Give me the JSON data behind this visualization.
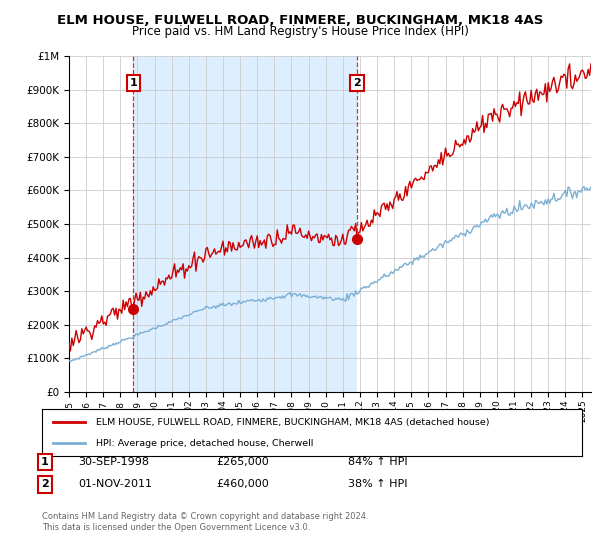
{
  "title": "ELM HOUSE, FULWELL ROAD, FINMERE, BUCKINGHAM, MK18 4AS",
  "subtitle": "Price paid vs. HM Land Registry's House Price Index (HPI)",
  "hpi_label": "HPI: Average price, detached house, Cherwell",
  "property_label": "ELM HOUSE, FULWELL ROAD, FINMERE, BUCKINGHAM, MK18 4AS (detached house)",
  "sale1_date": "30-SEP-1998",
  "sale1_price": 265000,
  "sale1_hpi": "84% ↑ HPI",
  "sale2_date": "01-NOV-2011",
  "sale2_price": 460000,
  "sale2_hpi": "38% ↑ HPI",
  "red_color": "#cc0000",
  "blue_color": "#7bafd4",
  "shade_color": "#ddeeff",
  "background_color": "#ffffff",
  "grid_color": "#cccccc",
  "ylim": [
    0,
    1000000
  ],
  "xlim_start": 1995.0,
  "xlim_end": 2025.5,
  "sale1_x": 1998.75,
  "sale2_x": 2011.833,
  "footnote": "Contains HM Land Registry data © Crown copyright and database right 2024.\nThis data is licensed under the Open Government Licence v3.0."
}
